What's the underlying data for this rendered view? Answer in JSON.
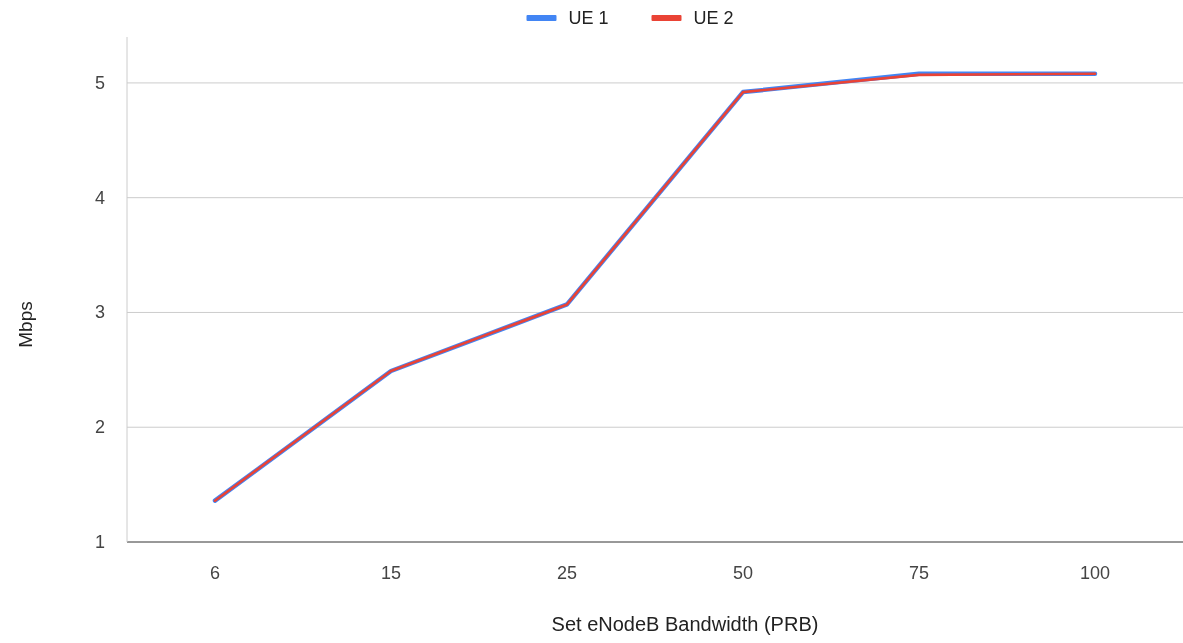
{
  "chart_data": {
    "type": "line",
    "xlabel": "Set eNodeB Bandwidth (PRB)",
    "ylabel": "Mbps",
    "categories": [
      "6",
      "15",
      "25",
      "50",
      "75",
      "100"
    ],
    "series": [
      {
        "name": "UE 1",
        "color": "#4285f4",
        "values": [
          1.36,
          2.49,
          3.07,
          4.92,
          5.08,
          5.08
        ]
      },
      {
        "name": "UE 2",
        "color": "#ea4335",
        "values": [
          1.36,
          2.49,
          3.07,
          4.92,
          5.07,
          5.08
        ]
      }
    ],
    "ylim": [
      1,
      5.4
    ],
    "yticks": [
      1,
      2,
      3,
      4,
      5
    ],
    "grid": "y",
    "legend": "top",
    "marker": "none",
    "line_style": "solid"
  }
}
